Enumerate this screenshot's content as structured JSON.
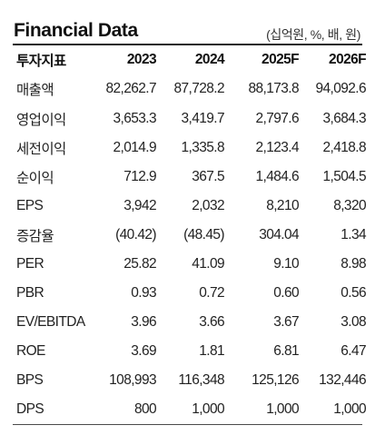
{
  "title": "Financial Data",
  "unit": "(십억원, %, 배, 원)",
  "columns": [
    "투자지표",
    "2023",
    "2024",
    "2025F",
    "2026F"
  ],
  "rows": [
    {
      "label": "매출액",
      "values": [
        "82,262.7",
        "87,728.2",
        "88,173.8",
        "94,092.6"
      ]
    },
    {
      "label": "영업이익",
      "values": [
        "3,653.3",
        "3,419.7",
        "2,797.6",
        "3,684.3"
      ]
    },
    {
      "label": "세전이익",
      "values": [
        "2,014.9",
        "1,335.8",
        "2,123.4",
        "2,418.8"
      ]
    },
    {
      "label": "순이익",
      "values": [
        "712.9",
        "367.5",
        "1,484.6",
        "1,504.5"
      ]
    },
    {
      "label": "EPS",
      "values": [
        "3,942",
        "2,032",
        "8,210",
        "8,320"
      ]
    },
    {
      "label": "증감율",
      "values": [
        "(40.42)",
        "(48.45)",
        "304.04",
        "1.34"
      ]
    },
    {
      "label": "PER",
      "values": [
        "25.82",
        "41.09",
        "9.10",
        "8.98"
      ]
    },
    {
      "label": "PBR",
      "values": [
        "0.93",
        "0.72",
        "0.60",
        "0.56"
      ]
    },
    {
      "label": "EV/EBITDA",
      "values": [
        "3.96",
        "3.66",
        "3.67",
        "3.08"
      ]
    },
    {
      "label": "ROE",
      "values": [
        "3.69",
        "1.81",
        "6.81",
        "6.47"
      ]
    },
    {
      "label": "BPS",
      "values": [
        "108,993",
        "116,348",
        "125,126",
        "132,446"
      ]
    },
    {
      "label": "DPS",
      "values": [
        "800",
        "1,000",
        "1,000",
        "1,000"
      ]
    }
  ]
}
